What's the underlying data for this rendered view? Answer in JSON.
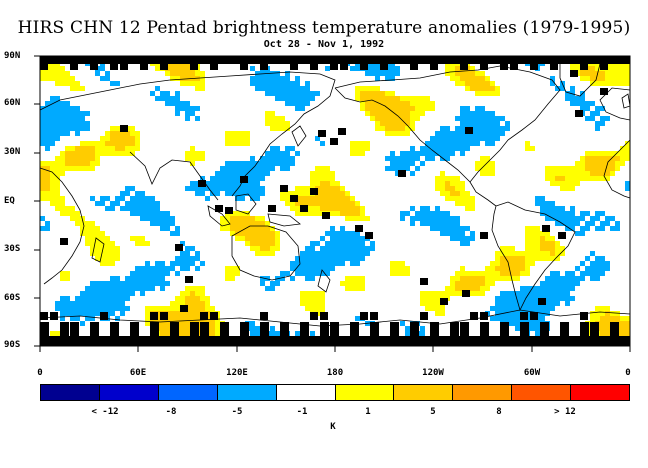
{
  "title": "HIRS CHN 12 Pentad brightness temperature anomalies (1979-1995)",
  "subtitle": "Oct 28 - Nov 1, 1992",
  "lat_labels": [
    "90N",
    "60N",
    "30N",
    "EQ",
    "30S",
    "60S",
    "90S"
  ],
  "lon_labels": [
    "0",
    "60E",
    "120E",
    "180",
    "120W",
    "60W",
    "0"
  ],
  "colorbar": {
    "colors": [
      "#000090",
      "#0000cc",
      "#0066ff",
      "#00aaff",
      "#ffffff",
      "#ffff00",
      "#ffcc00",
      "#ff9900",
      "#ff5500",
      "#ff0000"
    ],
    "labels": [
      "< -12",
      "-8",
      "-5",
      "-1",
      "1",
      "5",
      "8",
      "> 12"
    ],
    "units": "K"
  },
  "colors": {
    "land_outline": "#000000",
    "missing": "#000000",
    "cold": "#00aaff",
    "warm": "#ffff00",
    "warmer": "#ffcc00"
  }
}
